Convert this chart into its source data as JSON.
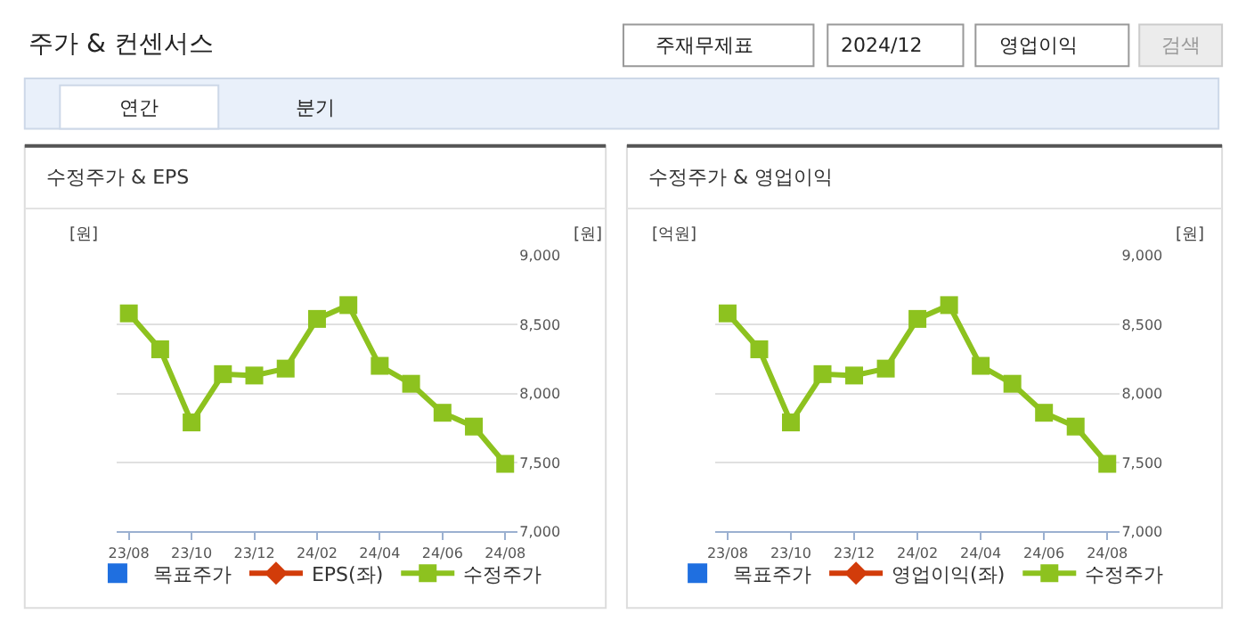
{
  "chart_data": [
    {
      "type": "other",
      "title": "주가 & 컨센서스",
      "annotations": [
        "주재무제표",
        "2024/12",
        "영업이익",
        "검색",
        "연간",
        "분기"
      ]
    },
    {
      "type": "line",
      "title": "수정주가 & EPS",
      "ylabel": "[원]",
      "y2label": "[원]",
      "categories": [
        "23/08",
        null,
        "23/10",
        null,
        "23/12",
        null,
        "24/02",
        null,
        "24/04",
        null,
        "24/06",
        null,
        "24/08"
      ],
      "y2lim": [
        7000,
        9000
      ],
      "y2ticks": [
        {
          "value": 7000,
          "label": "7,000"
        },
        {
          "value": 7500,
          "label": "7,500"
        },
        {
          "value": 8000,
          "label": "8,000"
        },
        {
          "value": 8500,
          "label": "8,500"
        },
        {
          "value": 9000,
          "label": "9,000"
        }
      ],
      "grid": "y",
      "legend": "bottom",
      "series": [
        {
          "name": "목표주가",
          "type": "scatter",
          "marker": "square",
          "color": "#1f6fe0",
          "values": [
            null,
            null,
            null,
            null,
            null,
            null,
            null,
            null,
            null,
            null,
            null,
            null,
            null
          ]
        },
        {
          "name": "EPS(좌)",
          "type": "line",
          "marker": "diamond",
          "color": "#d23c0a",
          "values": [
            null,
            null,
            null,
            null,
            null,
            null,
            null,
            null,
            null,
            null,
            null,
            null,
            null
          ]
        },
        {
          "name": "수정주가",
          "type": "line",
          "marker": "square",
          "color": "#8dc21f",
          "axis": "y2",
          "values": [
            8580,
            8320,
            7790,
            8140,
            8130,
            8180,
            8540,
            8640,
            8200,
            8070,
            7860,
            7760,
            7490
          ]
        }
      ]
    },
    {
      "type": "line",
      "title": "수정주가 & 영업이익",
      "ylabel": "[억원]",
      "y2label": "[원]",
      "categories": [
        "23/08",
        null,
        "23/10",
        null,
        "23/12",
        null,
        "24/02",
        null,
        "24/04",
        null,
        "24/06",
        null,
        "24/08"
      ],
      "y2lim": [
        7000,
        9000
      ],
      "y2ticks": [
        {
          "value": 7000,
          "label": "7,000"
        },
        {
          "value": 7500,
          "label": "7,500"
        },
        {
          "value": 8000,
          "label": "8,000"
        },
        {
          "value": 8500,
          "label": "8,500"
        },
        {
          "value": 9000,
          "label": "9,000"
        }
      ],
      "grid": "y",
      "legend": "bottom",
      "series": [
        {
          "name": "목표주가",
          "type": "scatter",
          "marker": "square",
          "color": "#1f6fe0",
          "values": [
            null,
            null,
            null,
            null,
            null,
            null,
            null,
            null,
            null,
            null,
            null,
            null,
            null
          ]
        },
        {
          "name": "영업이익(좌)",
          "type": "line",
          "marker": "diamond",
          "color": "#d23c0a",
          "values": [
            null,
            null,
            null,
            null,
            null,
            null,
            null,
            null,
            null,
            null,
            null,
            null,
            null
          ]
        },
        {
          "name": "수정주가",
          "type": "line",
          "marker": "square",
          "color": "#8dc21f",
          "axis": "y2",
          "values": [
            8580,
            8320,
            7790,
            8140,
            8130,
            8180,
            8540,
            8640,
            8200,
            8070,
            7860,
            7760,
            7490
          ]
        }
      ]
    }
  ]
}
